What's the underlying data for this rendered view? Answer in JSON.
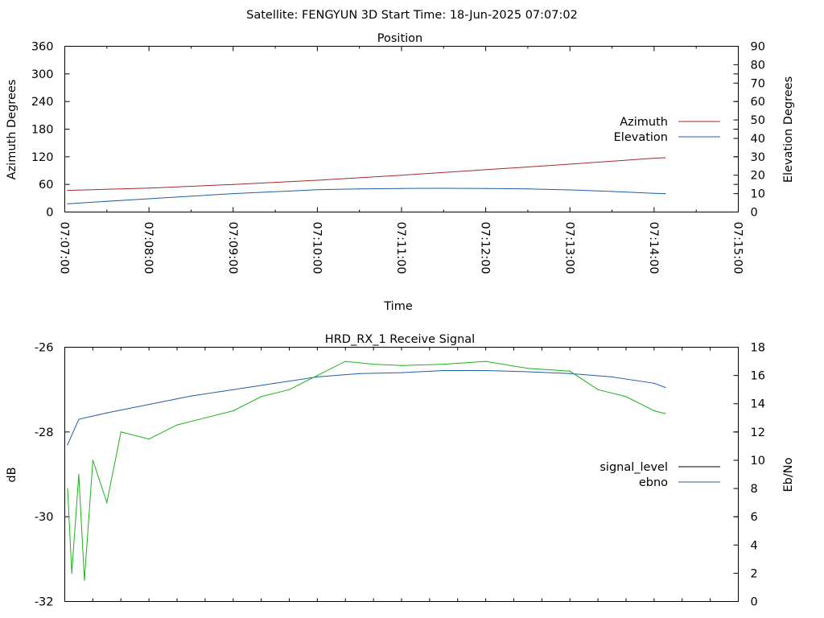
{
  "header": "Satellite: FENGYUN 3D    Start Time: 18-Jun-2025 07:07:02",
  "colors": {
    "azimuth": "#a52a2a",
    "elevation": "#1f5fa8",
    "signal_level": "#000000",
    "ebno_line": "#1f5fa8",
    "green_trace": "#19b319"
  },
  "chart_data": [
    {
      "type": "line",
      "title": "Position",
      "xlabel": "Time",
      "ylabel": "Azimuth Degrees",
      "y2label": "Elevation Degrees",
      "xlim": [
        "07:07:00",
        "07:15:00"
      ],
      "x_ticks": [
        "07:07:00",
        "07:08:00",
        "07:09:00",
        "07:10:00",
        "07:11:00",
        "07:12:00",
        "07:13:00",
        "07:14:00",
        "07:15:00"
      ],
      "ylim": [
        0,
        360
      ],
      "y_ticks": [
        "0",
        "60",
        "120",
        "180",
        "240",
        "300",
        "360"
      ],
      "y2lim": [
        0,
        90
      ],
      "y2_ticks": [
        "0",
        "10",
        "20",
        "30",
        "40",
        "50",
        "60",
        "70",
        "80",
        "90"
      ],
      "legend_position": "right",
      "grid": false,
      "series": [
        {
          "name": "Azimuth",
          "axis": "y",
          "color_key": "azimuth",
          "x": [
            "07:07:02",
            "07:08:00",
            "07:09:00",
            "07:10:00",
            "07:11:00",
            "07:12:00",
            "07:13:00",
            "07:14:00",
            "07:14:08"
          ],
          "y": [
            47,
            52,
            60,
            69,
            80,
            92,
            104,
            117,
            118
          ]
        },
        {
          "name": "Elevation",
          "axis": "y2",
          "color_key": "elevation",
          "x": [
            "07:07:02",
            "07:08:00",
            "07:09:00",
            "07:10:00",
            "07:10:30",
            "07:11:00",
            "07:11:30",
            "07:12:00",
            "07:12:30",
            "07:13:00",
            "07:13:30",
            "07:14:00",
            "07:14:08"
          ],
          "y": [
            4.5,
            7.2,
            10.0,
            12.1,
            12.6,
            12.8,
            12.9,
            12.8,
            12.6,
            12.0,
            11.2,
            10.2,
            10.0
          ]
        }
      ]
    },
    {
      "type": "line",
      "title": "HRD_RX_1 Receive Signal",
      "ylabel": "dB",
      "y2label": "Eb/No",
      "xlim": [
        "07:07:00",
        "07:15:00"
      ],
      "ylim": [
        -32,
        -26
      ],
      "y_ticks": [
        "-32",
        "-30",
        "-28",
        "-26"
      ],
      "y2lim": [
        0,
        18
      ],
      "y2_ticks": [
        "0",
        "2",
        "4",
        "6",
        "8",
        "10",
        "12",
        "14",
        "16",
        "18"
      ],
      "x_minor_ticks": 24,
      "legend_position": "right",
      "grid": false,
      "series": [
        {
          "name": "signal_level",
          "axis": "y",
          "color_key": "signal_level",
          "x": [],
          "y": []
        },
        {
          "name": "ebno",
          "axis": "y",
          "color_key": "ebno_line",
          "x": [
            "07:07:02",
            "07:07:10",
            "07:07:30",
            "07:08:00",
            "07:08:30",
            "07:09:00",
            "07:09:30",
            "07:10:00",
            "07:10:30",
            "07:11:00",
            "07:11:30",
            "07:12:00",
            "07:12:30",
            "07:13:00",
            "07:13:30",
            "07:14:00",
            "07:14:08"
          ],
          "y": [
            -28.3,
            -27.7,
            -27.55,
            -27.35,
            -27.15,
            -27.0,
            -26.85,
            -26.7,
            -26.62,
            -26.6,
            -26.55,
            -26.55,
            -26.58,
            -26.62,
            -26.7,
            -26.85,
            -26.95
          ]
        },
        {
          "axis": "y2",
          "color_key": "green_trace",
          "x": [
            "07:07:02",
            "07:07:05",
            "07:07:10",
            "07:07:14",
            "07:07:20",
            "07:07:30",
            "07:07:40",
            "07:08:00",
            "07:08:20",
            "07:08:40",
            "07:09:00",
            "07:09:20",
            "07:09:40",
            "07:10:00",
            "07:10:20",
            "07:10:40",
            "07:11:00",
            "07:11:30",
            "07:12:00",
            "07:12:30",
            "07:13:00",
            "07:13:20",
            "07:13:40",
            "07:14:00",
            "07:14:08"
          ],
          "y": [
            8,
            2,
            9,
            1.5,
            10,
            7,
            12,
            11.5,
            12.5,
            13,
            13.5,
            14.5,
            15,
            16,
            17,
            16.8,
            16.7,
            16.8,
            17,
            16.5,
            16.3,
            15,
            14.5,
            13.5,
            13.3
          ]
        }
      ]
    }
  ]
}
